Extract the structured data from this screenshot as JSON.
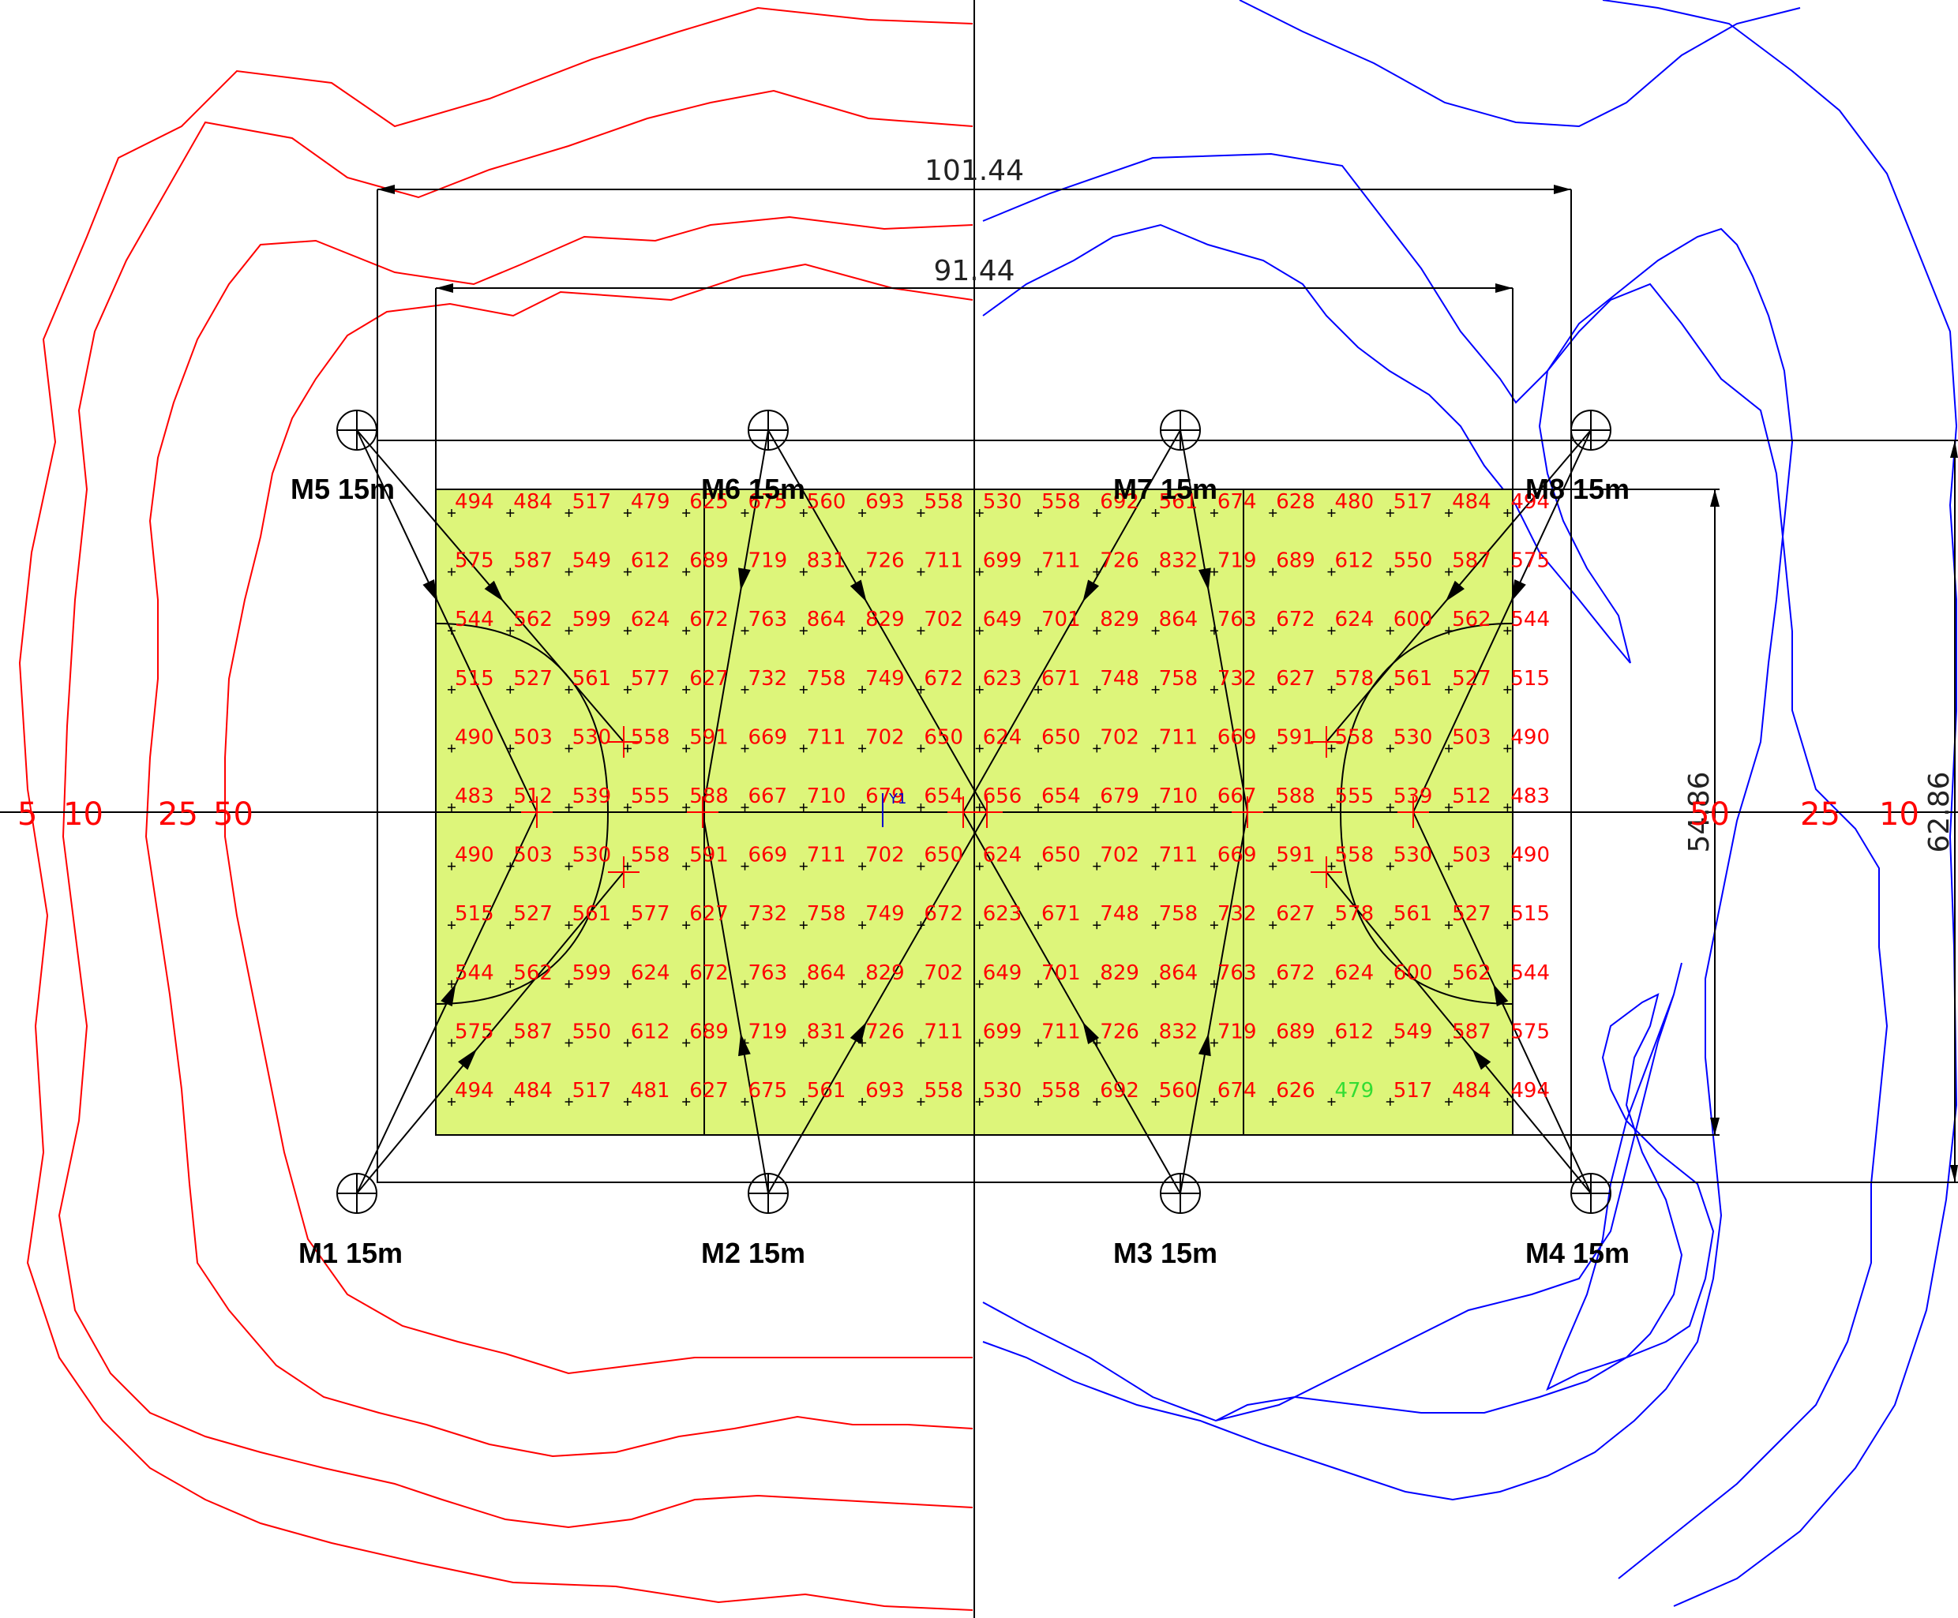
{
  "colors": {
    "field_fill": "#ddf57a",
    "grid_value": "#ff0000",
    "highlight_value": "#33dd33",
    "contour_left": "#ff0000",
    "contour_right": "#0000ff",
    "linework": "#000000",
    "marker_blue": "#0000cc"
  },
  "dimensions": {
    "outer_width": "101.44",
    "inner_width": "91.44",
    "inner_height": "54.86",
    "outer_height": "62.86"
  },
  "center_marker": "Y1",
  "contour_labels_left": [
    "5",
    "10",
    "25",
    "50"
  ],
  "contour_labels_right": [
    "50",
    "25",
    "10"
  ],
  "masts": [
    {
      "id": "m1",
      "label": "M1 15m"
    },
    {
      "id": "m2",
      "label": "M2 15m"
    },
    {
      "id": "m3",
      "label": "M3 15m"
    },
    {
      "id": "m4",
      "label": "M4 15m"
    },
    {
      "id": "m5",
      "label": "M5 15m"
    },
    {
      "id": "m6",
      "label": "M6 15m"
    },
    {
      "id": "m7",
      "label": "M7 15m"
    },
    {
      "id": "m8",
      "label": "M8 15m"
    }
  ],
  "grid_values": [
    [
      "494",
      "484",
      "517",
      "479",
      "625",
      "675",
      "560",
      "693",
      "558",
      "530",
      "558",
      "692",
      "561",
      "674",
      "628",
      "480",
      "517",
      "484",
      "494"
    ],
    [
      "575",
      "587",
      "549",
      "612",
      "689",
      "719",
      "831",
      "726",
      "711",
      "699",
      "711",
      "726",
      "832",
      "719",
      "689",
      "612",
      "550",
      "587",
      "575"
    ],
    [
      "544",
      "562",
      "599",
      "624",
      "672",
      "763",
      "864",
      "829",
      "702",
      "649",
      "701",
      "829",
      "864",
      "763",
      "672",
      "624",
      "600",
      "562",
      "544"
    ],
    [
      "515",
      "527",
      "561",
      "577",
      "627",
      "732",
      "758",
      "749",
      "672",
      "623",
      "671",
      "748",
      "758",
      "732",
      "627",
      "578",
      "561",
      "527",
      "515"
    ],
    [
      "490",
      "503",
      "530",
      "558",
      "591",
      "669",
      "711",
      "702",
      "650",
      "624",
      "650",
      "702",
      "711",
      "669",
      "591",
      "558",
      "530",
      "503",
      "490"
    ],
    [
      "483",
      "512",
      "539",
      "555",
      "588",
      "667",
      "710",
      "679",
      "654",
      "656",
      "654",
      "679",
      "710",
      "667",
      "588",
      "555",
      "539",
      "512",
      "483"
    ],
    [
      "490",
      "503",
      "530",
      "558",
      "591",
      "669",
      "711",
      "702",
      "650",
      "624",
      "650",
      "702",
      "711",
      "669",
      "591",
      "558",
      "530",
      "503",
      "490"
    ],
    [
      "515",
      "527",
      "561",
      "577",
      "627",
      "732",
      "758",
      "749",
      "672",
      "623",
      "671",
      "748",
      "758",
      "732",
      "627",
      "578",
      "561",
      "527",
      "515"
    ],
    [
      "544",
      "562",
      "599",
      "624",
      "672",
      "763",
      "864",
      "829",
      "702",
      "649",
      "701",
      "829",
      "864",
      "763",
      "672",
      "624",
      "600",
      "562",
      "544"
    ],
    [
      "575",
      "587",
      "550",
      "612",
      "689",
      "719",
      "831",
      "726",
      "711",
      "699",
      "711",
      "726",
      "832",
      "719",
      "689",
      "612",
      "549",
      "587",
      "575"
    ],
    [
      "494",
      "484",
      "517",
      "481",
      "627",
      "675",
      "561",
      "693",
      "558",
      "530",
      "558",
      "692",
      "560",
      "674",
      "626",
      "479",
      "517",
      "484",
      "494"
    ]
  ],
  "highlighted_cell": {
    "row": 10,
    "col": 15
  }
}
